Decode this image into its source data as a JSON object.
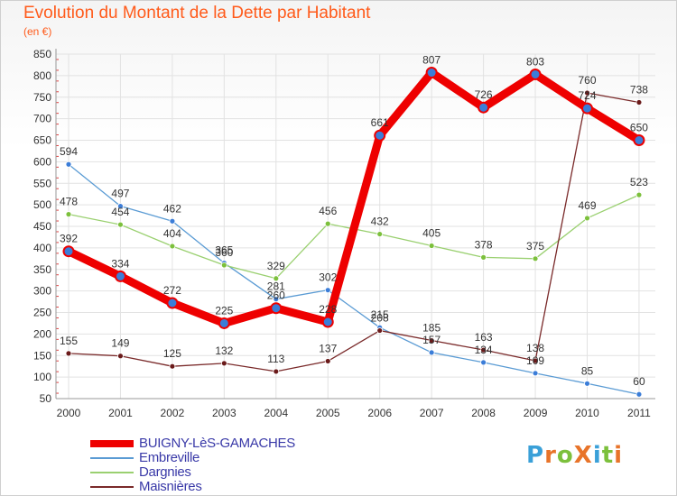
{
  "title": "Evolution du Montant de la Dette par Habitant",
  "unit": "(en €)",
  "logo": {
    "text": "ProXiti",
    "letters": [
      "P",
      "r",
      "o",
      "X",
      "i",
      "t",
      "i"
    ],
    "colors": [
      "#3aa0d8",
      "#e8742a",
      "#7cc03c",
      "#e8742a",
      "#3aa0d8",
      "#7cc03c",
      "#e8742a"
    ]
  },
  "chart_data": {
    "type": "line",
    "categories": [
      "2000",
      "2001",
      "2002",
      "2003",
      "2004",
      "2005",
      "2006",
      "2007",
      "2008",
      "2009",
      "2010",
      "2011"
    ],
    "ylim": [
      50,
      850
    ],
    "yticks": [
      50,
      100,
      150,
      200,
      250,
      300,
      350,
      400,
      450,
      500,
      550,
      600,
      650,
      700,
      750,
      800,
      850
    ],
    "grid": true,
    "series": [
      {
        "name": "BUIGNY-LèS-GAMACHES",
        "color": "#ee0000",
        "dot": "#3b7dd8",
        "width": 9,
        "values": [
          392,
          334,
          272,
          225,
          260,
          228,
          661,
          807,
          726,
          803,
          724,
          650
        ]
      },
      {
        "name": "Embreville",
        "color": "#5a9bd4",
        "dot": "#3b7dd8",
        "width": 1.3,
        "values": [
          594,
          497,
          462,
          365,
          281,
          302,
          215,
          157,
          134,
          109,
          85,
          60
        ]
      },
      {
        "name": "Dargnies",
        "color": "#9ad070",
        "dot": "#7cc03c",
        "width": 1.3,
        "values": [
          478,
          454,
          404,
          360,
          329,
          456,
          432,
          405,
          378,
          375,
          469,
          523
        ]
      },
      {
        "name": "Maisnières",
        "color": "#7a2a2a",
        "dot": "#6a1a1a",
        "width": 1.3,
        "values": [
          155,
          149,
          125,
          132,
          113,
          137,
          208,
          185,
          163,
          138,
          760,
          738
        ]
      }
    ]
  }
}
